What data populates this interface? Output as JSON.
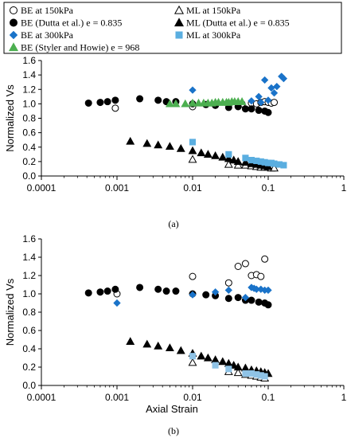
{
  "legend": {
    "items": [
      {
        "key": "be150",
        "label": "BE at 150kPa",
        "marker": "circle-open"
      },
      {
        "key": "ml150",
        "label": "ML at 150kPa",
        "marker": "triangle-open"
      },
      {
        "key": "beDutta",
        "label": "BE (Dutta et al.) e = 0.835",
        "marker": "circle-filled"
      },
      {
        "key": "mlDutta",
        "label": "ML (Dutta et al.) e = 0.835",
        "marker": "triangle-filled"
      },
      {
        "key": "be300",
        "label": "BE at 300kPa",
        "marker": "diamond-blue"
      },
      {
        "key": "ml300",
        "label": "ML at 300kPa",
        "marker": "square-lightblue"
      },
      {
        "key": "beStyler",
        "label": "BE (Styler and Howie) e = 968",
        "marker": "triangle-green"
      }
    ]
  },
  "colors": {
    "black": "#000000",
    "blue_diamond": "#1a73c9",
    "light_blue_square": "#5aaee0",
    "panel_b_square": "#8fc3e6",
    "green": "#4caf50"
  },
  "chart_data": [
    {
      "type": "scatter",
      "panel": "a",
      "caption": "(a)",
      "ylabel": "Normalized  Vs",
      "xlabel": "",
      "xscale": "log",
      "xlim": [
        0.0001,
        1
      ],
      "ylim": [
        0,
        1.6
      ],
      "xticks": [
        "0.0001",
        "0.001",
        "0.01",
        "0.1",
        "1"
      ],
      "yticks": [
        "0.0",
        "0.2",
        "0.4",
        "0.6",
        "0.8",
        "1.0",
        "1.2",
        "1.4",
        "1.6"
      ],
      "series": [
        {
          "key": "be150",
          "name": "BE at 150kPa",
          "marker": "circle-open",
          "x": [
            0.00095,
            0.01,
            0.02,
            0.03,
            0.045,
            0.06,
            0.07,
            0.08,
            0.09,
            0.1,
            0.11,
            0.12
          ],
          "y": [
            0.94,
            0.96,
            0.98,
            1.0,
            1.0,
            1.01,
            1.0,
            1.02,
            1.03,
            1.02,
            1.01,
            1.02
          ]
        },
        {
          "key": "beDutta",
          "name": "BE (Dutta et al.) e = 0.835",
          "marker": "circle-filled",
          "x": [
            0.00042,
            0.0006,
            0.00075,
            0.00095,
            0.002,
            0.0035,
            0.0045,
            0.006,
            0.01,
            0.015,
            0.02,
            0.03,
            0.04,
            0.05,
            0.06,
            0.075,
            0.09,
            0.1
          ],
          "y": [
            1.01,
            1.02,
            1.03,
            1.05,
            1.07,
            1.05,
            1.03,
            1.03,
            1.0,
            0.99,
            0.98,
            0.95,
            0.96,
            0.93,
            0.93,
            0.91,
            0.9,
            0.88
          ]
        },
        {
          "key": "be300",
          "name": "BE at 300kPa",
          "marker": "diamond-blue",
          "x": [
            0.01,
            0.06,
            0.075,
            0.08,
            0.09,
            0.1,
            0.11,
            0.12,
            0.13,
            0.15,
            0.16
          ],
          "y": [
            1.19,
            1.04,
            1.1,
            1.02,
            1.33,
            1.05,
            1.22,
            1.15,
            1.24,
            1.38,
            1.35
          ]
        },
        {
          "key": "beStyler",
          "name": "BE (Styler and Howie) e = 968",
          "marker": "triangle-green",
          "x": [
            0.005,
            0.006,
            0.008,
            0.01,
            0.012,
            0.014,
            0.016,
            0.018,
            0.02,
            0.022,
            0.025,
            0.028,
            0.03,
            0.033,
            0.036,
            0.04,
            0.045
          ],
          "y": [
            1.0,
            1.0,
            1.0,
            1.01,
            1.01,
            1.01,
            1.01,
            1.01,
            1.02,
            1.02,
            1.02,
            1.02,
            1.02,
            1.03,
            1.03,
            1.03,
            1.03
          ]
        },
        {
          "key": "ml150",
          "name": "ML at 150kPa",
          "marker": "triangle-open",
          "x": [
            0.01,
            0.03,
            0.04,
            0.05,
            0.06,
            0.07,
            0.08,
            0.09,
            0.1,
            0.11,
            0.12
          ],
          "y": [
            0.23,
            0.16,
            0.15,
            0.15,
            0.14,
            0.13,
            0.12,
            0.12,
            0.12,
            0.11,
            0.11
          ]
        },
        {
          "key": "mlDutta",
          "name": "ML (Dutta et al.) e = 0.835",
          "marker": "triangle-filled",
          "x": [
            0.0015,
            0.0025,
            0.0035,
            0.005,
            0.007,
            0.01,
            0.013,
            0.016,
            0.02,
            0.025,
            0.03,
            0.035,
            0.04,
            0.05,
            0.06,
            0.07,
            0.08,
            0.09,
            0.1
          ],
          "y": [
            0.48,
            0.45,
            0.43,
            0.41,
            0.38,
            0.35,
            0.32,
            0.3,
            0.28,
            0.26,
            0.24,
            0.22,
            0.2,
            0.19,
            0.17,
            0.16,
            0.15,
            0.14,
            0.13
          ]
        },
        {
          "key": "ml300",
          "name": "ML at 300kPa",
          "marker": "square-lightblue",
          "x": [
            0.01,
            0.03,
            0.05,
            0.06,
            0.07,
            0.08,
            0.09,
            0.1,
            0.11,
            0.12,
            0.14,
            0.16
          ],
          "y": [
            0.47,
            0.3,
            0.25,
            0.22,
            0.21,
            0.2,
            0.19,
            0.18,
            0.18,
            0.17,
            0.16,
            0.15
          ]
        }
      ]
    },
    {
      "type": "scatter",
      "panel": "b",
      "caption": "(b)",
      "ylabel": "Normalized  Vs",
      "xlabel": "Axial Strain",
      "xscale": "log",
      "xlim": [
        0.0001,
        1
      ],
      "ylim": [
        0,
        1.6
      ],
      "xticks": [
        "0.0001",
        "0.001",
        "0.01",
        "0.1",
        "1"
      ],
      "yticks": [
        "0.0",
        "0.2",
        "0.4",
        "0.6",
        "0.8",
        "1.0",
        "1.2",
        "1.4",
        "1.6"
      ],
      "series": [
        {
          "key": "be150",
          "name": "BE at 150kPa",
          "marker": "circle-open",
          "x": [
            0.001,
            0.01,
            0.03,
            0.04,
            0.05,
            0.06,
            0.07,
            0.08,
            0.09
          ],
          "y": [
            1.0,
            1.19,
            1.12,
            1.3,
            1.33,
            1.2,
            1.21,
            1.19,
            1.38
          ]
        },
        {
          "key": "beDutta",
          "name": "BE (Dutta et al.) e = 0.835",
          "marker": "circle-filled",
          "x": [
            0.00042,
            0.0006,
            0.00075,
            0.00095,
            0.002,
            0.0035,
            0.0045,
            0.006,
            0.01,
            0.015,
            0.02,
            0.03,
            0.04,
            0.05,
            0.06,
            0.075,
            0.09,
            0.1
          ],
          "y": [
            1.01,
            1.02,
            1.03,
            1.05,
            1.07,
            1.05,
            1.03,
            1.03,
            1.0,
            0.99,
            0.98,
            0.95,
            0.96,
            0.93,
            0.93,
            0.91,
            0.9,
            0.88
          ]
        },
        {
          "key": "be300",
          "name": "BE at 300kPa",
          "marker": "diamond-blue",
          "x": [
            0.001,
            0.01,
            0.02,
            0.03,
            0.05,
            0.06,
            0.065,
            0.07,
            0.08,
            0.09,
            0.1
          ],
          "y": [
            0.9,
            0.99,
            1.02,
            1.04,
            0.96,
            1.07,
            1.06,
            1.05,
            1.05,
            1.04,
            1.04
          ]
        },
        {
          "key": "ml150",
          "name": "ML at 150kPa",
          "marker": "triangle-open",
          "x": [
            0.01,
            0.03,
            0.04,
            0.05,
            0.06,
            0.07,
            0.08,
            0.09
          ],
          "y": [
            0.25,
            0.15,
            0.14,
            0.12,
            0.11,
            0.1,
            0.09,
            0.08
          ]
        },
        {
          "key": "mlDutta",
          "name": "ML (Dutta et al.) e = 0.835",
          "marker": "triangle-filled",
          "x": [
            0.0015,
            0.0025,
            0.0035,
            0.005,
            0.007,
            0.01,
            0.013,
            0.016,
            0.02,
            0.025,
            0.03,
            0.035,
            0.04,
            0.05,
            0.06,
            0.07,
            0.08,
            0.09,
            0.1
          ],
          "y": [
            0.48,
            0.45,
            0.43,
            0.41,
            0.38,
            0.35,
            0.32,
            0.3,
            0.28,
            0.26,
            0.24,
            0.22,
            0.2,
            0.19,
            0.17,
            0.16,
            0.15,
            0.14,
            0.13
          ]
        },
        {
          "key": "ml300",
          "name": "ML at 300kPa",
          "marker": "square-lightblue",
          "x": [
            0.01,
            0.02,
            0.03,
            0.05,
            0.06,
            0.07,
            0.08,
            0.09
          ],
          "y": [
            0.32,
            0.22,
            0.18,
            0.13,
            0.13,
            0.12,
            0.11,
            0.1
          ]
        }
      ]
    }
  ],
  "caption_a": "(a)",
  "caption_b": "(b)"
}
